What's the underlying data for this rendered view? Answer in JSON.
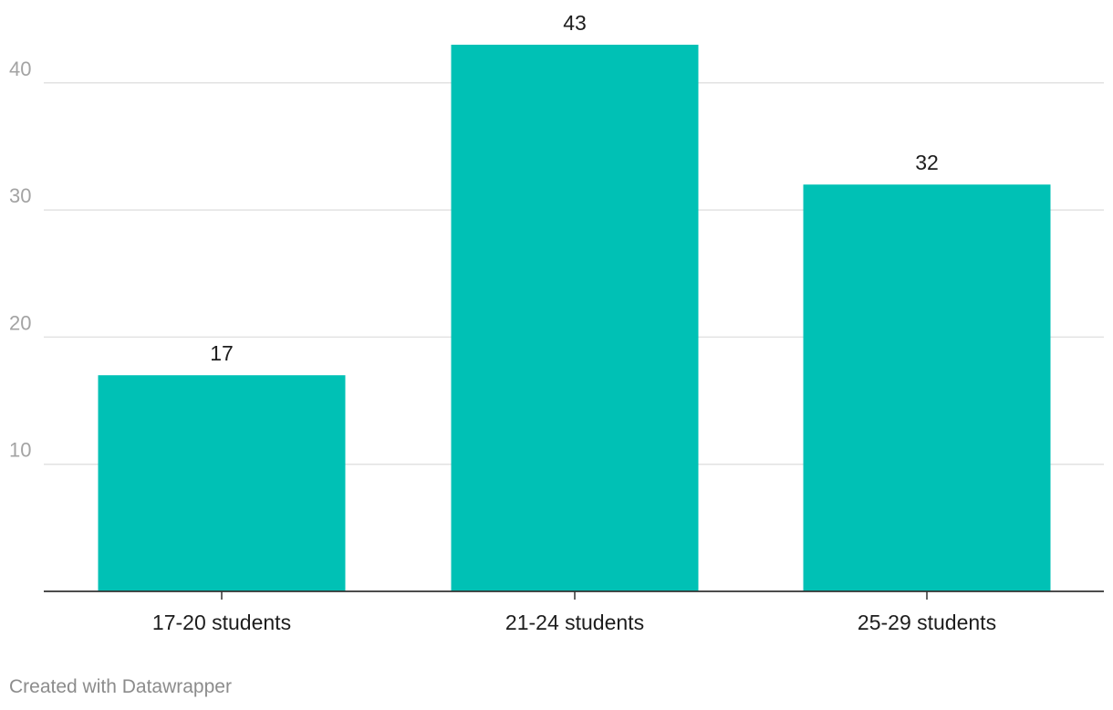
{
  "chart_data": {
    "type": "bar",
    "categories": [
      "17-20 students",
      "21-24 students",
      "25-29 students"
    ],
    "values": [
      17,
      43,
      32
    ],
    "data_labels": [
      "17",
      "43",
      "32"
    ],
    "title": "",
    "xlabel": "",
    "ylabel": "",
    "ylim": [
      0,
      43
    ],
    "y_ticks": [
      10,
      20,
      30,
      40
    ],
    "grid": true,
    "legend": "none",
    "bar_color": "#00c1b5"
  },
  "footer": {
    "credit": "Created with Datawrapper"
  }
}
